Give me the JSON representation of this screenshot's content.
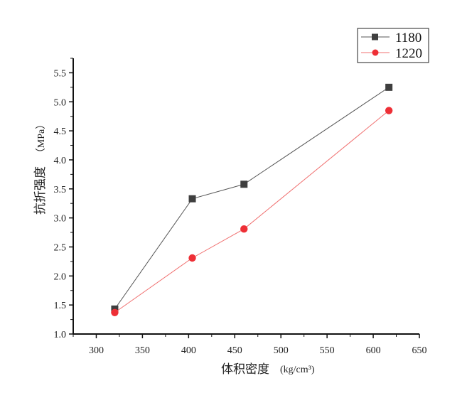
{
  "chart_data": {
    "type": "line",
    "title": "",
    "xlabel": "体积密度",
    "xlabel_unit": "(kg/cm³)",
    "ylabel": "抗折强度",
    "ylabel_unit": "（MPa）",
    "xlim": [
      275,
      650
    ],
    "ylim": [
      1.0,
      5.75
    ],
    "xticks": [
      "300",
      "350",
      "400",
      "450",
      "500",
      "550",
      "600",
      "650"
    ],
    "yticks": [
      "1.0",
      "1.5",
      "2.0",
      "2.5",
      "3.0",
      "3.5",
      "4.0",
      "4.5",
      "5.0",
      "5.5"
    ],
    "grid": false,
    "legend_position": "top-right",
    "x": [
      320,
      404,
      460,
      617
    ],
    "series": [
      {
        "name": "1180",
        "values": [
          1.43,
          3.33,
          3.58,
          5.25
        ],
        "color": "#3f3f3f",
        "line_color": "#555555",
        "marker": "square"
      },
      {
        "name": "1220",
        "values": [
          1.37,
          2.31,
          2.81,
          4.85
        ],
        "color": "#ee2f36",
        "line_color": "#f07070",
        "marker": "circle"
      }
    ]
  }
}
